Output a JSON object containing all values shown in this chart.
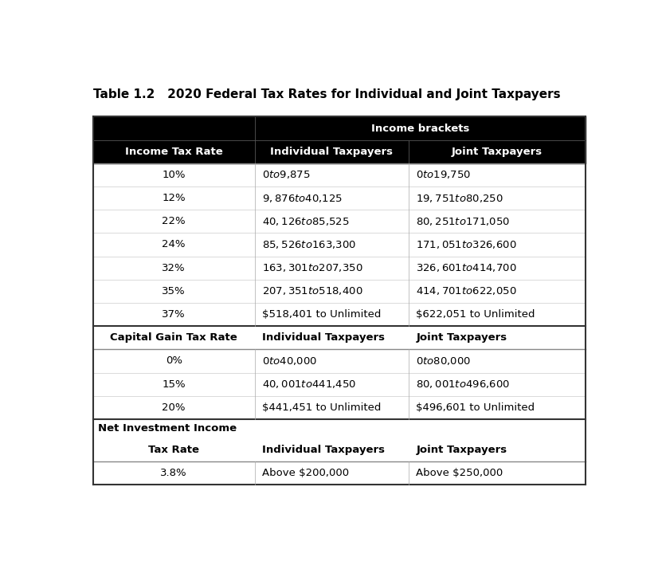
{
  "title": "Table 1.2   2020 Federal Tax Rates for Individual and Joint Taxpayers",
  "header_row1_label": "Income brackets",
  "header_row2": [
    "Income Tax Rate",
    "Individual Taxpayers",
    "Joint Taxpayers"
  ],
  "income_tax_rows": [
    [
      "10%",
      "$0 to $9,875",
      "$0 to $19,750"
    ],
    [
      "12%",
      "$9,876 to $40,125",
      "$19,751 to $80,250"
    ],
    [
      "22%",
      "$40,126 to $85,525",
      "$80,251 to $171,050"
    ],
    [
      "24%",
      "$85,526 to $163,300",
      "$171,051 to $326,600"
    ],
    [
      "32%",
      "$163,301 to $207,350",
      "$326,601 to $414,700"
    ],
    [
      "35%",
      "$207,351 to $518,400",
      "$414,701 to $622,050"
    ],
    [
      "37%",
      "$518,401 to Unlimited",
      "$622,051 to Unlimited"
    ]
  ],
  "capital_gain_header": [
    "Capital Gain Tax Rate",
    "Individual Taxpayers",
    "Joint Taxpayers"
  ],
  "capital_gain_rows": [
    [
      "0%",
      "$0 to $40,000",
      "$0 to $80,000"
    ],
    [
      "15%",
      "$40,001 to $441,450",
      "$80,001 to $496,600"
    ],
    [
      "20%",
      "$441,451 to Unlimited",
      "$496,601 to Unlimited"
    ]
  ],
  "net_investment_label": "Net Investment Income",
  "net_investment_header": [
    "Tax Rate",
    "Individual Taxpayers",
    "Joint Taxpayers"
  ],
  "net_investment_rows": [
    [
      "3.8%",
      "Above $200,000",
      "Above $250,000"
    ]
  ],
  "black_header_bg": "#000000",
  "white_text": "#ffffff",
  "black_text": "#000000",
  "bg_color": "#ffffff",
  "header_fontsize": 9.5,
  "data_fontsize": 9.5,
  "title_fontsize": 11
}
